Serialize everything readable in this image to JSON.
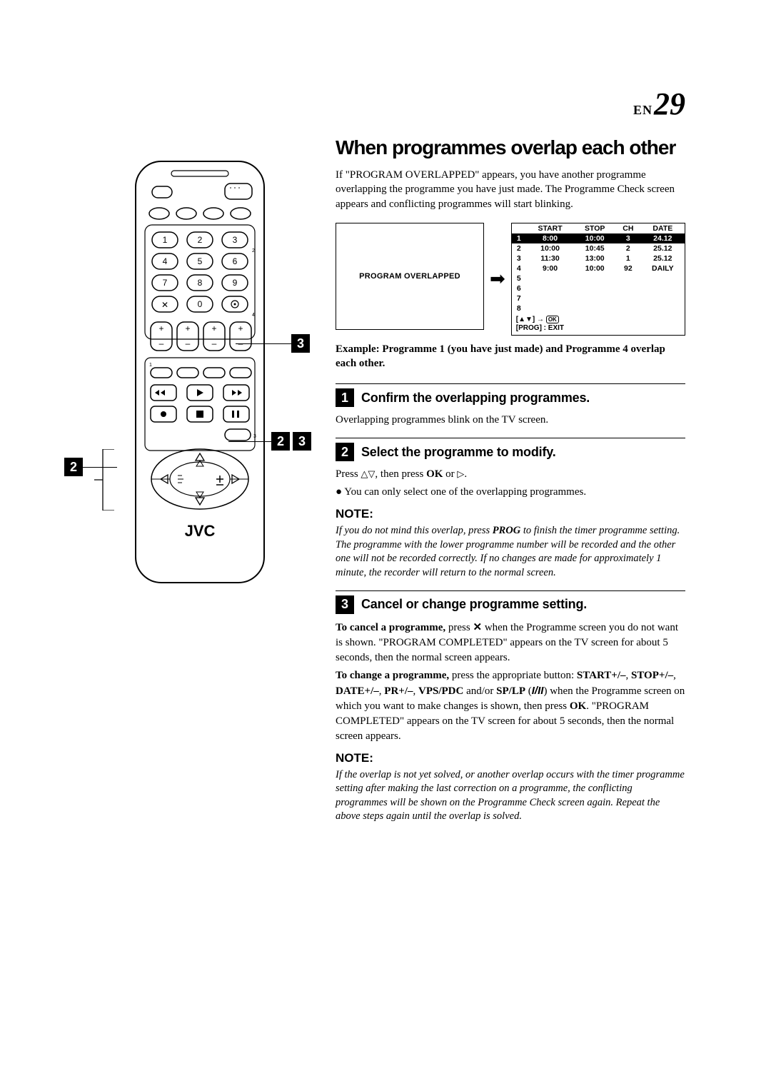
{
  "page": {
    "lang": "EN",
    "number": "29"
  },
  "title": "When programmes overlap each other",
  "intro": "If \"PROGRAM OVERLAPPED\" appears, you have another programme overlapping the programme you have just made. The Programme Check screen appears and conflicting programmes will start blinking.",
  "osd": {
    "left_label": "PROGRAM OVERLAPPED",
    "headers": [
      "",
      "START",
      "STOP",
      "CH",
      "DATE"
    ],
    "rows": [
      {
        "n": "1",
        "start": "8:00",
        "stop": "10:00",
        "ch": "3",
        "date": "24.12",
        "hl": true
      },
      {
        "n": "2",
        "start": "10:00",
        "stop": "10:45",
        "ch": "2",
        "date": "25.12",
        "hl": false
      },
      {
        "n": "3",
        "start": "11:30",
        "stop": "13:00",
        "ch": "1",
        "date": "25.12",
        "hl": false
      },
      {
        "n": "4",
        "start": "9:00",
        "stop": "10:00",
        "ch": "92",
        "date": "DAILY",
        "hl": false
      },
      {
        "n": "5",
        "start": "",
        "stop": "",
        "ch": "",
        "date": "",
        "hl": false
      },
      {
        "n": "6",
        "start": "",
        "stop": "",
        "ch": "",
        "date": "",
        "hl": false
      },
      {
        "n": "7",
        "start": "",
        "stop": "",
        "ch": "",
        "date": "",
        "hl": false
      },
      {
        "n": "8",
        "start": "",
        "stop": "",
        "ch": "",
        "date": "",
        "hl": false
      }
    ],
    "footer1": "[▲▼] → OK",
    "footer2": "[PROG] : EXIT"
  },
  "example_caption": "Example: Programme 1 (you have just made) and Programme 4 overlap each other.",
  "steps": {
    "s1": {
      "num": "1",
      "title": "Confirm the overlapping programmes.",
      "body": "Overlapping programmes blink on the TV screen."
    },
    "s2": {
      "num": "2",
      "title": "Select the programme to modify.",
      "press_prefix": "Press ",
      "press_mid": ", then press ",
      "ok": "OK",
      "or": " or ",
      "period": ".",
      "bullet": "You can only select one of the overlapping programmes."
    },
    "note1_head": "NOTE:",
    "note1_body": "If you do not mind this overlap, press PROG to finish the timer programme setting. The programme with the lower programme number will be recorded and the other one will not be recorded correctly. If no changes are made for approximately 1 minute, the recorder will return to the normal screen.",
    "s3": {
      "num": "3",
      "title": "Cancel or change programme setting.",
      "cancel_lead": "To cancel a programme,",
      "cancel_rest": " press ✕ when the Programme screen you do not want is shown. \"PROGRAM COMPLETED\" appears on the TV screen for about 5 seconds, then the normal screen appears.",
      "change_lead": "To change a programme,",
      "change_rest1": " press the appropriate button: ",
      "btns": "START+/–, STOP+/–, DATE+/–, PR+/–, VPS/PDC",
      "andor": " and/or ",
      "splp": "SP/LP",
      "splp_paren_open": " (",
      "splp_icon": "I/II",
      "splp_paren_close": ")",
      "change_rest2": " when the Programme screen on which you want to make changes is shown, then press ",
      "ok": "OK",
      "change_rest3": ". \"PROGRAM COMPLETED\" appears on the TV screen for about 5 seconds, then the normal screen appears."
    },
    "note2_head": "NOTE:",
    "note2_body": "If the overlap is not yet solved, or another overlap occurs with the timer programme setting after making the last correction on a programme, the conflicting programmes will be shown on the Programme Check screen again. Repeat the above steps again until the overlap is solved."
  },
  "remote": {
    "brand": "JVC",
    "keypad": [
      "1",
      "2",
      "3",
      "4",
      "5",
      "6",
      "7",
      "8",
      "9",
      "✕",
      "0",
      "⊙"
    ],
    "callouts": {
      "c1": "3",
      "c2a": "2",
      "c2b": "3",
      "c3": "2"
    }
  }
}
